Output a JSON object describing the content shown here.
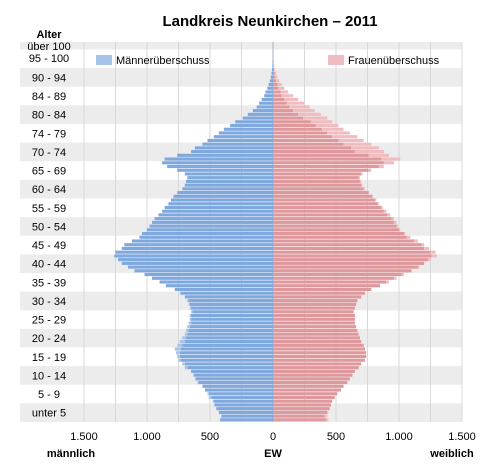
{
  "chart_data": {
    "type": "bar",
    "orientation": "horizontal",
    "chart_kind": "population pyramid",
    "title": "Landkreis Neunkirchen – 2011",
    "ylabel": "Alter",
    "xlabel": "EW",
    "left_label": "männlich",
    "right_label": "weiblich",
    "xlim": [
      -1500,
      1500
    ],
    "xticks": [
      -1500,
      -1000,
      -500,
      0,
      500,
      1000,
      1500
    ],
    "xtick_labels": [
      "1.500",
      "1.000",
      "500",
      "0",
      "500",
      "1.000",
      "1.500"
    ],
    "age_group_labels": [
      "über 100",
      "95 - 100",
      "90 - 94",
      "84 - 89",
      "80 - 84",
      "74 - 79",
      "70 - 74",
      "65 - 69",
      "60 - 64",
      "55 - 59",
      "50 - 54",
      "45 - 49",
      "40 - 44",
      "35 - 39",
      "30 - 34",
      "25 - 29",
      "20 - 24",
      "15 - 19",
      "10 - 14",
      "5 - 9",
      "unter 5"
    ],
    "legend": [
      {
        "name": "Männerüberschuss",
        "color": "#a7c4e8",
        "position": "top-left"
      },
      {
        "name": "Frauenüberschuss",
        "color": "#f0bcc0",
        "position": "top-right"
      }
    ],
    "colors": {
      "male": "#7ea8de",
      "female": "#df999d",
      "male_excess": "#a7c4e8",
      "female_excess": "#f0bcc0",
      "band": "#ececec"
    },
    "age_max": 102,
    "series": [
      {
        "name": "männlich",
        "values": [
          420,
          410,
          430,
          450,
          470,
          480,
          510,
          520,
          540,
          560,
          600,
          620,
          630,
          650,
          700,
          720,
          750,
          760,
          770,
          780,
          760,
          740,
          720,
          700,
          690,
          680,
          670,
          660,
          660,
          650,
          660,
          670,
          680,
          700,
          740,
          780,
          850,
          900,
          960,
          1020,
          1100,
          1150,
          1200,
          1230,
          1260,
          1250,
          1200,
          1180,
          1120,
          1060,
          1040,
          1000,
          980,
          960,
          940,
          910,
          880,
          860,
          830,
          810,
          790,
          760,
          720,
          700,
          690,
          680,
          700,
          760,
          840,
          880,
          860,
          760,
          650,
          620,
          560,
          520,
          470,
          430,
          390,
          340,
          300,
          240,
          200,
          160,
          130,
          110,
          90,
          70,
          60,
          45,
          35,
          25,
          18,
          12,
          8,
          5,
          3,
          2,
          1,
          1,
          0
        ]
      },
      {
        "name": "weiblich",
        "values": [
          440,
          430,
          440,
          450,
          460,
          470,
          490,
          510,
          540,
          560,
          590,
          610,
          630,
          650,
          680,
          700,
          730,
          740,
          740,
          730,
          720,
          700,
          690,
          680,
          670,
          660,
          650,
          650,
          650,
          640,
          650,
          660,
          670,
          700,
          730,
          780,
          850,
          920,
          980,
          1040,
          1100,
          1160,
          1200,
          1250,
          1300,
          1290,
          1240,
          1200,
          1150,
          1090,
          1050,
          1010,
          990,
          980,
          960,
          930,
          900,
          870,
          840,
          820,
          790,
          760,
          730,
          710,
          700,
          690,
          710,
          780,
          880,
          960,
          1010,
          920,
          880,
          840,
          780,
          720,
          670,
          610,
          560,
          520,
          470,
          430,
          380,
          330,
          290,
          250,
          200,
          160,
          120,
          90,
          70,
          50,
          35,
          25,
          15,
          10,
          6,
          4,
          2,
          1,
          0
        ]
      }
    ],
    "ages": [
      0,
      1,
      2,
      3,
      4,
      5,
      6,
      7,
      8,
      9,
      10,
      11,
      12,
      13,
      14,
      15,
      16,
      17,
      18,
      19,
      20,
      21,
      22,
      23,
      24,
      25,
      26,
      27,
      28,
      29,
      30,
      31,
      32,
      33,
      34,
      35,
      36,
      37,
      38,
      39,
      40,
      41,
      42,
      43,
      44,
      45,
      46,
      47,
      48,
      49,
      50,
      51,
      52,
      53,
      54,
      55,
      56,
      57,
      58,
      59,
      60,
      61,
      62,
      63,
      64,
      65,
      66,
      67,
      68,
      69,
      70,
      71,
      72,
      73,
      74,
      75,
      76,
      77,
      78,
      79,
      80,
      81,
      82,
      83,
      84,
      85,
      86,
      87,
      88,
      89,
      90,
      91,
      92,
      93,
      94,
      95,
      96,
      97,
      98,
      99,
      100
    ]
  }
}
